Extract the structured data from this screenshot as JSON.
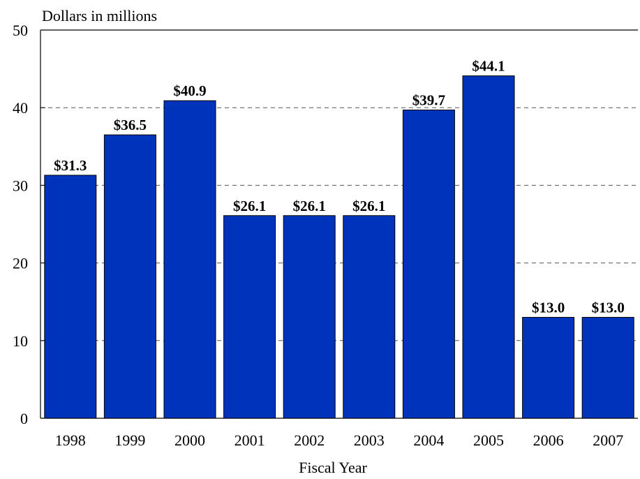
{
  "chart_data": {
    "type": "bar",
    "title": "",
    "ylabel": "Dollars in millions",
    "xlabel": "Fiscal Year",
    "categories": [
      "1998",
      "1999",
      "2000",
      "2001",
      "2002",
      "2003",
      "2004",
      "2005",
      "2006",
      "2007"
    ],
    "values": [
      31.3,
      36.5,
      40.9,
      26.1,
      26.1,
      26.1,
      39.7,
      44.1,
      13.0,
      13.0
    ],
    "data_labels": [
      "$31.3",
      "$36.5",
      "$40.9",
      "$26.1",
      "$26.1",
      "$26.1",
      "$39.7",
      "$44.1",
      "$13.0",
      "$13.0"
    ],
    "ylim": [
      0,
      50
    ],
    "yticks": [
      "0",
      "10",
      "20",
      "30",
      "40",
      "50"
    ],
    "grid": "dashed horizontal",
    "legend": "none",
    "colors": {
      "bar": "#0033bb",
      "bar_edge": "#000000",
      "grid": "#555555",
      "axis": "#000000"
    }
  }
}
